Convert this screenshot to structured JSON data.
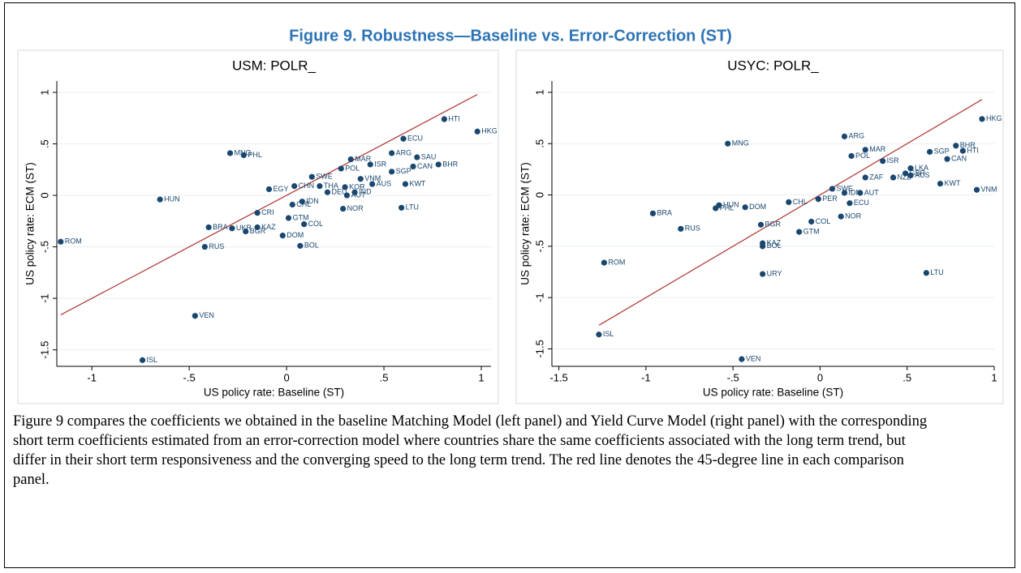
{
  "title": "Figure 9. Robustness—Baseline vs. Error-Correction (ST)",
  "chart_data": [
    {
      "type": "scatter",
      "title": "USM: POLR_",
      "x_label": "US policy rate: Baseline (ST)",
      "y_label": "US policy rate: ECM (ST)",
      "color": "#1a476f",
      "line_color": "#b2403d",
      "diagonal": true,
      "grid": true,
      "xlim": [
        -1.18,
        1.05
      ],
      "ylim": [
        -1.66,
        1.11
      ],
      "xticks": [
        -1,
        {
          "value": -0.5,
          "label": "-.5"
        },
        0,
        {
          "value": 0.5,
          "label": ".5"
        },
        1
      ],
      "yticks": [
        {
          "value": -1.5,
          "label": "-1.5"
        },
        -1,
        {
          "value": -0.5,
          "label": "-.5"
        },
        0,
        {
          "value": 0.5,
          "label": ".5"
        },
        1
      ],
      "labels": [
        "HTI",
        "HKG",
        "ECU",
        "MNG",
        "PHL",
        "MAR",
        "ARG",
        "SAU",
        "ISR",
        "POL",
        "BHR",
        "CAN",
        "SGP",
        "VNM",
        "AUS",
        "KWT",
        "EGY",
        "CHN",
        "THA",
        "KOR",
        "DEU",
        "IND",
        "AUT",
        "HUN",
        "LTU",
        "NOR",
        "IDN",
        "CRI",
        "BRA",
        "UKR",
        "BGR",
        "KAZ",
        "RUS",
        "DOM",
        "COL",
        "BOL",
        "ROM",
        "VEN",
        "ISL",
        "GTM",
        "CHL",
        "SWE"
      ],
      "x": [
        0.81,
        0.98,
        0.6,
        -0.29,
        -0.22,
        0.33,
        0.54,
        0.67,
        0.43,
        0.28,
        0.78,
        0.65,
        0.54,
        0.38,
        0.44,
        0.61,
        -0.09,
        0.04,
        0.17,
        0.3,
        0.21,
        0.35,
        0.31,
        -0.65,
        0.59,
        0.29,
        0.08,
        -0.15,
        -0.4,
        -0.28,
        -0.21,
        -0.15,
        -0.42,
        -0.02,
        0.09,
        0.07,
        -1.16,
        -0.47,
        -0.74,
        0.01,
        0.03,
        0.13
      ],
      "values": [
        0.74,
        0.62,
        0.55,
        0.41,
        0.39,
        0.35,
        0.41,
        0.37,
        0.3,
        0.26,
        0.3,
        0.28,
        0.23,
        0.16,
        0.11,
        0.11,
        0.06,
        0.09,
        0.09,
        0.08,
        0.03,
        0.03,
        0.0,
        -0.04,
        -0.12,
        -0.13,
        -0.06,
        -0.17,
        -0.31,
        -0.32,
        -0.35,
        -0.31,
        -0.5,
        -0.39,
        -0.28,
        -0.49,
        -0.45,
        -1.17,
        -1.6,
        -0.22,
        -0.09,
        0.18
      ]
    },
    {
      "type": "scatter",
      "title": "USYC: POLR_",
      "x_label": "US policy rate: Baseline (ST)",
      "y_label": "US policy rate: ECM (ST)",
      "color": "#1a476f",
      "line_color": "#b2403d",
      "diagonal": true,
      "grid": true,
      "xlim": [
        -1.54,
        1.0
      ],
      "ylim": [
        -1.67,
        1.11
      ],
      "xticks": [
        {
          "value": -1.5,
          "label": "-1.5"
        },
        -1,
        {
          "value": -0.5,
          "label": "-.5"
        },
        0,
        {
          "value": 0.5,
          "label": ".5"
        },
        1
      ],
      "yticks": [
        {
          "value": -1.5,
          "label": "-1.5"
        },
        -1,
        {
          "value": -0.5,
          "label": "-.5"
        },
        0,
        {
          "value": 0.5,
          "label": ".5"
        },
        1
      ],
      "labels": [
        "HKG",
        "BHR",
        "HTI",
        "CAN",
        "ARG",
        "MNG",
        "MAR",
        "SGP",
        "POL",
        "ISR",
        "LKA",
        "GBR",
        "AUS",
        "NZL",
        "KWT",
        "VNM",
        "SWE",
        "AUT",
        "ECU",
        "PER",
        "HUN",
        "PHL",
        "DOM",
        "BRA",
        "RUS",
        "BGR",
        "COL",
        "NOR",
        "GTM",
        "KAZ",
        "BOL",
        "ROM",
        "URY",
        "LTU",
        "ISL",
        "VEN",
        "CHL",
        "IDN",
        "ZAF"
      ],
      "x": [
        0.93,
        0.78,
        0.82,
        0.73,
        0.14,
        -0.53,
        0.26,
        0.63,
        0.18,
        0.36,
        0.52,
        0.49,
        0.52,
        0.42,
        0.69,
        0.9,
        0.07,
        0.23,
        0.17,
        -0.01,
        -0.58,
        -0.6,
        -0.43,
        -0.96,
        -0.8,
        -0.34,
        -0.05,
        0.12,
        -0.12,
        -0.33,
        -0.33,
        -1.24,
        -0.33,
        0.61,
        -1.27,
        -0.45,
        -0.18,
        0.14,
        0.26
      ],
      "values": [
        0.74,
        0.48,
        0.43,
        0.35,
        0.57,
        0.5,
        0.44,
        0.42,
        0.38,
        0.33,
        0.26,
        0.21,
        0.19,
        0.17,
        0.11,
        0.05,
        0.06,
        0.02,
        -0.08,
        -0.04,
        -0.1,
        -0.13,
        -0.12,
        -0.18,
        -0.33,
        -0.29,
        -0.26,
        -0.21,
        -0.36,
        -0.47,
        -0.5,
        -0.66,
        -0.77,
        -0.76,
        -1.36,
        -1.6,
        -0.07,
        0.02,
        0.17
      ]
    }
  ],
  "caption": "Figure 9 compares the coefficients we obtained in the baseline Matching Model (left panel) and Yield Curve Model (right panel) with the corresponding short term coefficients estimated from an error-correction model where countries share the same coefficients associated with the long term trend, but differ in their short term responsiveness and the converging speed to the long term trend. The red line denotes the 45-degree line in each comparison panel."
}
